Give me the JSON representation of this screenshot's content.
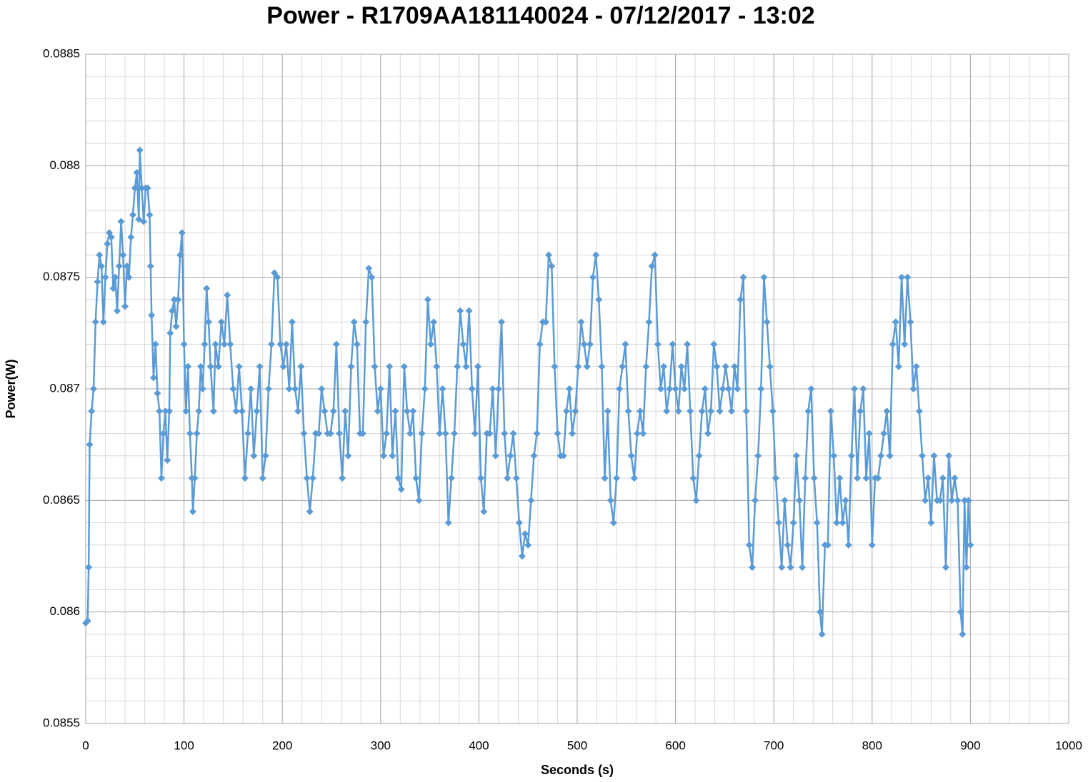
{
  "chart_data": {
    "type": "line",
    "title": "Power - R1709AA181140024 - 07/12/2017 - 13:02",
    "x_label": "Seconds (s)",
    "y_label": "Power(W)",
    "xlim": [
      0,
      1000
    ],
    "xticks": [
      0,
      100,
      200,
      300,
      400,
      500,
      600,
      700,
      800,
      900,
      1000
    ],
    "ylim": [
      0.0855,
      0.0885
    ],
    "yticks": [
      0.0855,
      0.086,
      0.0865,
      0.087,
      0.0875,
      0.088,
      0.0885
    ],
    "grid": true,
    "minor_grid": {
      "x": 5,
      "y": 5
    },
    "marker": "diamond",
    "x": [
      0,
      2,
      3,
      4,
      6,
      8,
      10,
      12,
      14,
      16,
      18,
      20,
      22,
      24,
      26,
      28,
      30,
      32,
      34,
      36,
      38,
      40,
      42,
      44,
      46,
      48,
      50,
      52,
      54,
      55,
      57,
      59,
      61,
      63,
      65,
      66,
      67,
      69,
      71,
      73,
      75,
      77,
      79,
      81,
      83,
      85,
      86,
      88,
      90,
      92,
      94,
      96,
      98,
      100,
      102,
      104,
      106,
      108,
      109,
      111,
      113,
      115,
      117,
      119,
      121,
      123,
      125,
      127,
      130,
      132,
      135,
      138,
      141,
      144,
      147,
      150,
      153,
      156,
      159,
      162,
      165,
      168,
      171,
      174,
      177,
      180,
      183,
      186,
      189,
      192,
      195,
      198,
      201,
      204,
      207,
      210,
      213,
      216,
      219,
      222,
      225,
      228,
      231,
      234,
      237,
      240,
      243,
      246,
      249,
      252,
      255,
      258,
      261,
      264,
      267,
      270,
      273,
      276,
      279,
      282,
      285,
      288,
      291,
      294,
      297,
      300,
      303,
      306,
      309,
      312,
      315,
      318,
      321,
      324,
      327,
      330,
      333,
      336,
      339,
      342,
      345,
      348,
      351,
      354,
      357,
      360,
      363,
      366,
      369,
      372,
      375,
      378,
      381,
      384,
      387,
      390,
      393,
      396,
      399,
      402,
      405,
      408,
      411,
      414,
      417,
      420,
      423,
      426,
      429,
      432,
      435,
      438,
      441,
      444,
      447,
      450,
      453,
      456,
      459,
      462,
      465,
      468,
      471,
      474,
      477,
      480,
      483,
      486,
      489,
      492,
      495,
      498,
      501,
      504,
      507,
      510,
      513,
      516,
      519,
      522,
      525,
      528,
      531,
      534,
      537,
      540,
      543,
      546,
      549,
      552,
      555,
      558,
      561,
      564,
      567,
      570,
      573,
      576,
      579,
      582,
      585,
      588,
      591,
      594,
      597,
      600,
      603,
      606,
      609,
      612,
      615,
      618,
      621,
      624,
      627,
      630,
      633,
      636,
      639,
      642,
      645,
      648,
      651,
      654,
      657,
      660,
      663,
      666,
      669,
      672,
      675,
      678,
      681,
      684,
      687,
      690,
      693,
      696,
      699,
      702,
      705,
      708,
      711,
      714,
      717,
      720,
      723,
      726,
      729,
      732,
      735,
      738,
      741,
      744,
      747,
      749,
      752,
      755,
      758,
      761,
      764,
      767,
      770,
      773,
      776,
      779,
      782,
      785,
      788,
      791,
      794,
      797,
      800,
      803,
      806,
      809,
      812,
      815,
      818,
      821,
      824,
      827,
      830,
      833,
      836,
      839,
      842,
      845,
      848,
      851,
      854,
      857,
      860,
      863,
      866,
      869,
      872,
      875,
      878,
      881,
      884,
      887,
      890,
      892,
      894,
      896,
      898,
      900
    ],
    "series": [
      {
        "name": "Power(W)",
        "color": "#5b9bd5",
        "values": [
          0.08595,
          0.08596,
          0.0862,
          0.08675,
          0.0869,
          0.087,
          0.0873,
          0.08748,
          0.0876,
          0.08755,
          0.0873,
          0.0875,
          0.08765,
          0.0877,
          0.08768,
          0.08745,
          0.0875,
          0.08735,
          0.08755,
          0.08775,
          0.0876,
          0.08737,
          0.08755,
          0.0875,
          0.08768,
          0.08778,
          0.0879,
          0.08797,
          0.08776,
          0.08807,
          0.0879,
          0.08775,
          0.0879,
          0.0879,
          0.08778,
          0.08755,
          0.08733,
          0.08705,
          0.0872,
          0.08698,
          0.0869,
          0.0866,
          0.0868,
          0.0869,
          0.08668,
          0.0869,
          0.08725,
          0.08735,
          0.0874,
          0.08728,
          0.0874,
          0.0876,
          0.0877,
          0.0872,
          0.0869,
          0.0871,
          0.0868,
          0.0866,
          0.08645,
          0.0866,
          0.0868,
          0.0869,
          0.0871,
          0.087,
          0.0872,
          0.08745,
          0.0873,
          0.0871,
          0.0869,
          0.0872,
          0.0871,
          0.0873,
          0.0872,
          0.08742,
          0.0872,
          0.087,
          0.0869,
          0.0871,
          0.0869,
          0.0866,
          0.0868,
          0.087,
          0.0867,
          0.0869,
          0.0871,
          0.0866,
          0.0867,
          0.087,
          0.0872,
          0.08752,
          0.0875,
          0.0872,
          0.0871,
          0.0872,
          0.087,
          0.0873,
          0.087,
          0.0869,
          0.0871,
          0.0868,
          0.0866,
          0.08645,
          0.0866,
          0.0868,
          0.0868,
          0.087,
          0.0869,
          0.0868,
          0.0868,
          0.0869,
          0.0872,
          0.0868,
          0.0866,
          0.0869,
          0.0867,
          0.0871,
          0.0873,
          0.0872,
          0.0868,
          0.0868,
          0.0873,
          0.08754,
          0.0875,
          0.0871,
          0.0869,
          0.087,
          0.0867,
          0.0868,
          0.0871,
          0.0867,
          0.0869,
          0.0866,
          0.08655,
          0.0871,
          0.0869,
          0.0868,
          0.0869,
          0.0866,
          0.0865,
          0.0868,
          0.087,
          0.0874,
          0.0872,
          0.0873,
          0.0871,
          0.0868,
          0.087,
          0.0868,
          0.0864,
          0.0866,
          0.0868,
          0.0871,
          0.08735,
          0.0872,
          0.0871,
          0.08735,
          0.087,
          0.0868,
          0.0871,
          0.0866,
          0.08645,
          0.0868,
          0.0868,
          0.087,
          0.0867,
          0.087,
          0.0873,
          0.0868,
          0.0866,
          0.0867,
          0.0868,
          0.0866,
          0.0864,
          0.08625,
          0.08635,
          0.0863,
          0.0865,
          0.0867,
          0.0868,
          0.0872,
          0.0873,
          0.0873,
          0.0876,
          0.08755,
          0.0871,
          0.0868,
          0.0867,
          0.0867,
          0.0869,
          0.087,
          0.0868,
          0.0869,
          0.0871,
          0.0873,
          0.0872,
          0.0871,
          0.0872,
          0.0875,
          0.0876,
          0.0874,
          0.0871,
          0.0866,
          0.0869,
          0.0865,
          0.0864,
          0.0866,
          0.087,
          0.0871,
          0.0872,
          0.0869,
          0.0867,
          0.0866,
          0.0868,
          0.0869,
          0.0868,
          0.0871,
          0.0873,
          0.08755,
          0.0876,
          0.0872,
          0.087,
          0.0871,
          0.0869,
          0.087,
          0.0872,
          0.087,
          0.0869,
          0.0871,
          0.087,
          0.0872,
          0.0869,
          0.0866,
          0.0865,
          0.0867,
          0.0869,
          0.087,
          0.0868,
          0.0869,
          0.0872,
          0.0871,
          0.0869,
          0.087,
          0.0871,
          0.087,
          0.0869,
          0.0871,
          0.087,
          0.0874,
          0.0875,
          0.0869,
          0.0863,
          0.0862,
          0.0865,
          0.0867,
          0.087,
          0.0875,
          0.0873,
          0.0871,
          0.0869,
          0.0866,
          0.0864,
          0.0862,
          0.0865,
          0.0863,
          0.0862,
          0.0864,
          0.0867,
          0.0865,
          0.0862,
          0.0866,
          0.0869,
          0.087,
          0.0866,
          0.0864,
          0.086,
          0.0859,
          0.0863,
          0.0863,
          0.0869,
          0.0867,
          0.0864,
          0.0866,
          0.0864,
          0.0865,
          0.0863,
          0.0867,
          0.087,
          0.0866,
          0.0869,
          0.087,
          0.0866,
          0.0868,
          0.0863,
          0.0866,
          0.0866,
          0.0867,
          0.0868,
          0.0869,
          0.0867,
          0.0872,
          0.0873,
          0.0871,
          0.0875,
          0.0872,
          0.0875,
          0.0873,
          0.087,
          0.0871,
          0.0869,
          0.0867,
          0.0865,
          0.0866,
          0.0864,
          0.0867,
          0.0865,
          0.0865,
          0.0866,
          0.0862,
          0.0867,
          0.0865,
          0.0866,
          0.0865,
          0.086,
          0.0859,
          0.0865,
          0.0862,
          0.0865,
          0.0863
        ]
      }
    ]
  }
}
